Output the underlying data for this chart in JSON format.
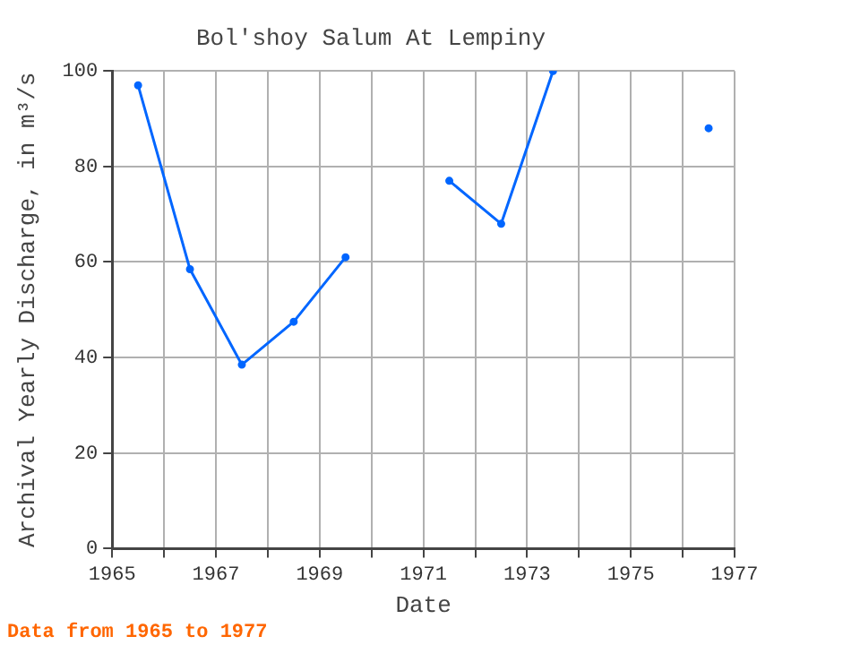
{
  "chart_data": {
    "type": "line",
    "title": "Bol'shoy Salum At Lempiny",
    "xlabel": "Date",
    "ylabel": "Archival Yearly Discharge, in m³/s",
    "x": [
      1965.5,
      1966.5,
      1967.5,
      1968.5,
      1969.5,
      1970.5,
      1971.5,
      1972.5,
      1973.5,
      1974.5,
      1975.5,
      1976.5
    ],
    "series": [
      {
        "color": "#0066ff",
        "values": [
          97,
          58.5,
          38.5,
          47.5,
          61,
          null,
          77,
          68,
          100,
          null,
          null,
          88
        ]
      }
    ],
    "xlim": [
      1965,
      1977
    ],
    "xticks": [
      1965,
      {
        "value": 1966,
        "label": null
      },
      1967,
      {
        "value": 1968,
        "label": null
      },
      1969,
      {
        "value": 1970,
        "label": null
      },
      1971,
      {
        "value": 1972,
        "label": null
      },
      1973,
      {
        "value": 1974,
        "label": null
      },
      1975,
      {
        "value": 1976,
        "label": null
      },
      1977
    ],
    "ylim": [
      0,
      100
    ],
    "yticks": [
      0,
      20,
      40,
      60,
      80,
      100
    ],
    "grid": true,
    "legend": false,
    "marker": "circle",
    "line_style": "solid",
    "annotations": [
      "Data from 1965 to 1977"
    ]
  }
}
